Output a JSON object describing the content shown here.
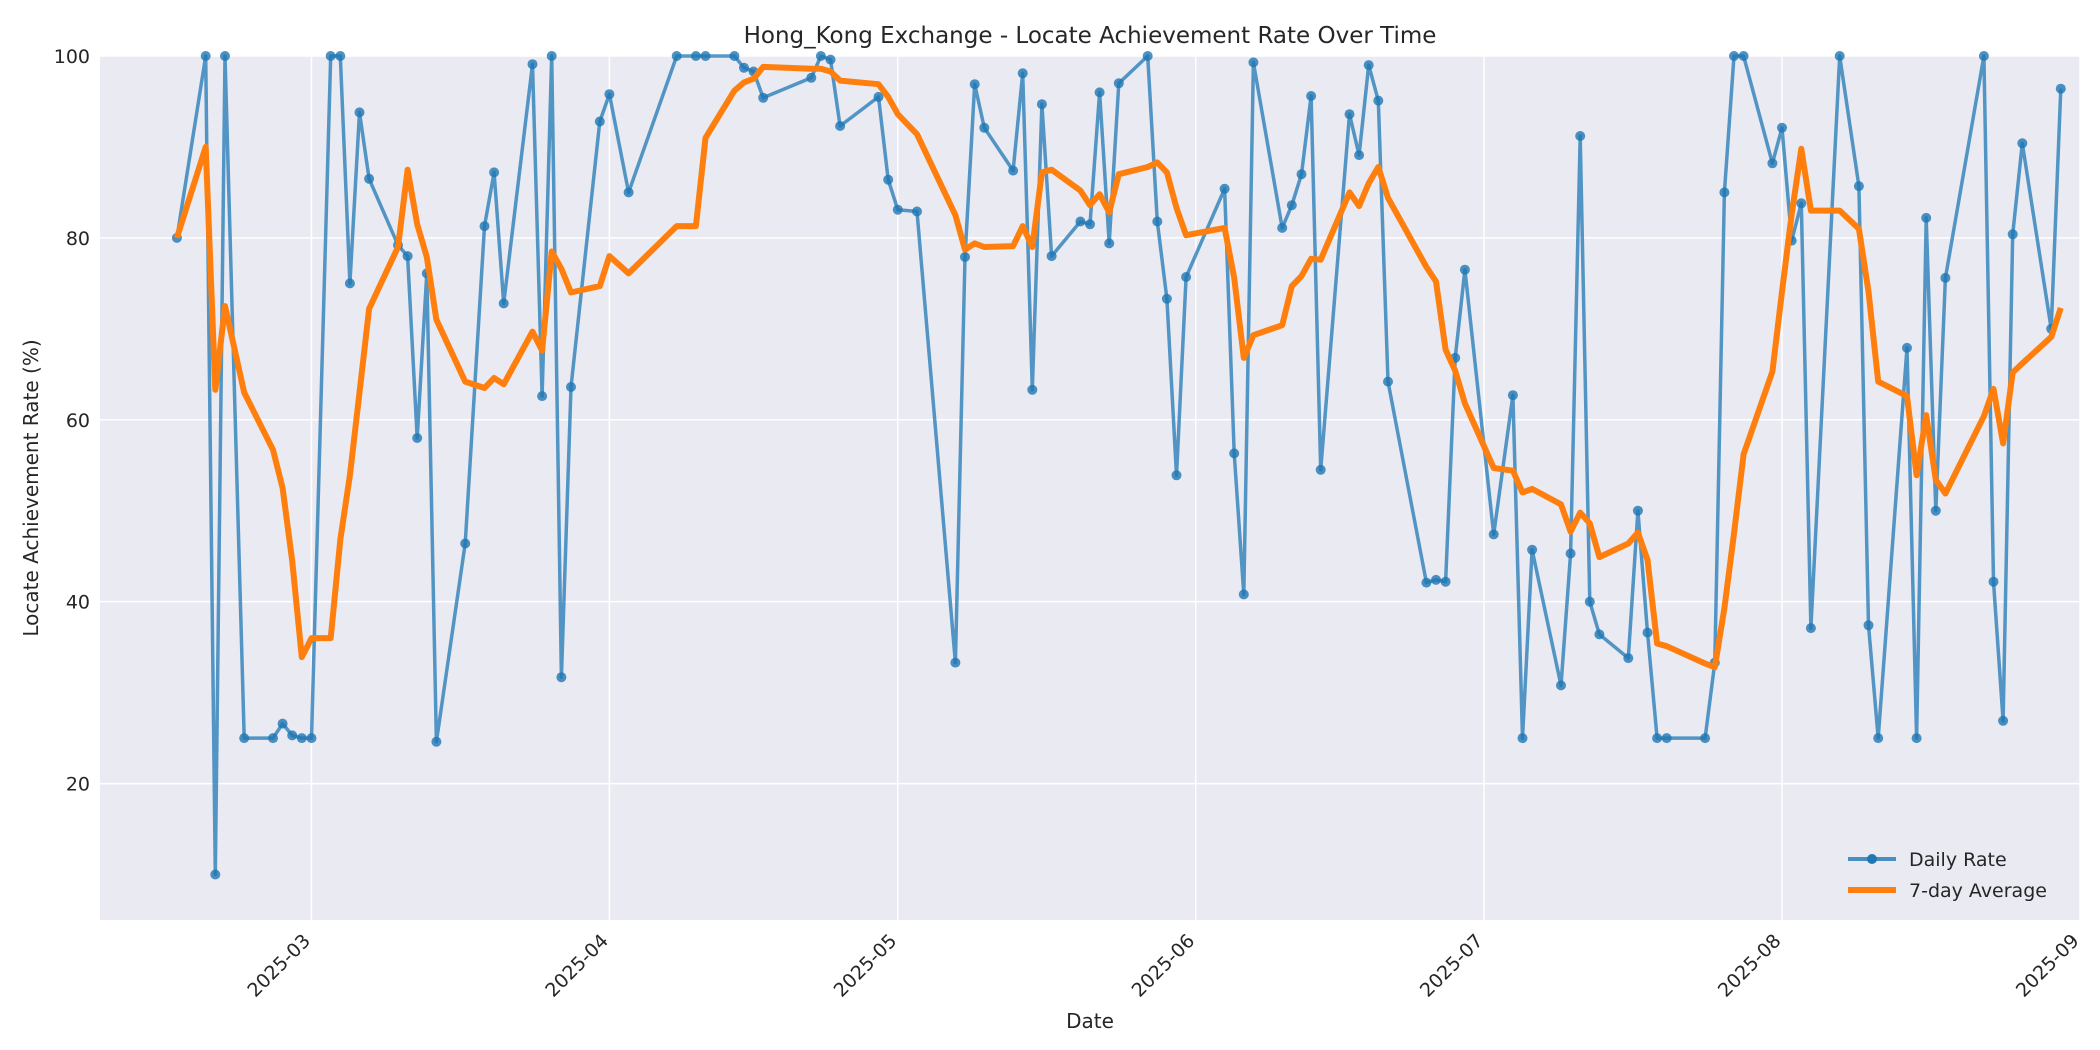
{
  "chart_data": {
    "type": "line",
    "title": "Hong_Kong Exchange - Locate Achievement Rate Over Time",
    "xlabel": "Date",
    "ylabel": "Locate Achievement Rate (%)",
    "xlim": [
      "2025-02-07",
      "2025-09-01"
    ],
    "ylim": [
      5,
      100
    ],
    "x_ticks": [
      "2025-03",
      "2025-04",
      "2025-05",
      "2025-06",
      "2025-07",
      "2025-08",
      "2025-09"
    ],
    "y_ticks": [
      20,
      40,
      60,
      80,
      100
    ],
    "grid": true,
    "legend_position": "bottom-right",
    "colors": {
      "daily": "#1f77b4",
      "avg": "#ff7f0e",
      "plot_bg": "#eaeaf2",
      "grid": "#ffffff"
    },
    "series": [
      {
        "name": "Daily Rate",
        "points": [
          [
            "2025-02-15",
            80
          ],
          [
            "2025-02-18",
            100
          ],
          [
            "2025-02-19",
            10
          ],
          [
            "2025-02-20",
            100
          ],
          [
            "2025-02-22",
            25
          ],
          [
            "2025-02-25",
            25
          ],
          [
            "2025-02-26",
            26.6
          ],
          [
            "2025-02-27",
            25.3
          ],
          [
            "2025-02-28",
            25
          ],
          [
            "2025-03-01",
            25
          ],
          [
            "2025-03-03",
            100
          ],
          [
            "2025-03-04",
            100
          ],
          [
            "2025-03-05",
            75
          ],
          [
            "2025-03-06",
            93.8
          ],
          [
            "2025-03-07",
            86.5
          ],
          [
            "2025-03-10",
            79.2
          ],
          [
            "2025-03-11",
            78
          ],
          [
            "2025-03-12",
            58
          ],
          [
            "2025-03-13",
            76.1
          ],
          [
            "2025-03-14",
            24.6
          ],
          [
            "2025-03-17",
            46.4
          ],
          [
            "2025-03-19",
            81.3
          ],
          [
            "2025-03-20",
            87.2
          ],
          [
            "2025-03-21",
            72.8
          ],
          [
            "2025-03-24",
            99.1
          ],
          [
            "2025-03-25",
            62.6
          ],
          [
            "2025-03-26",
            100
          ],
          [
            "2025-03-27",
            31.7
          ],
          [
            "2025-03-28",
            63.6
          ],
          [
            "2025-03-31",
            92.8
          ],
          [
            "2025-04-01",
            95.8
          ],
          [
            "2025-04-03",
            85
          ],
          [
            "2025-04-08",
            100
          ],
          [
            "2025-04-10",
            100
          ],
          [
            "2025-04-11",
            100
          ],
          [
            "2025-04-14",
            100
          ],
          [
            "2025-04-15",
            98.7
          ],
          [
            "2025-04-16",
            98.3
          ],
          [
            "2025-04-17",
            95.4
          ],
          [
            "2025-04-22",
            97.6
          ],
          [
            "2025-04-23",
            100
          ],
          [
            "2025-04-24",
            99.6
          ],
          [
            "2025-04-25",
            92.3
          ],
          [
            "2025-04-29",
            95.5
          ],
          [
            "2025-04-30",
            86.4
          ],
          [
            "2025-05-01",
            83.1
          ],
          [
            "2025-05-03",
            82.9
          ],
          [
            "2025-05-07",
            33.3
          ],
          [
            "2025-05-08",
            77.9
          ],
          [
            "2025-05-09",
            96.9
          ],
          [
            "2025-05-10",
            92.1
          ],
          [
            "2025-05-13",
            87.4
          ],
          [
            "2025-05-14",
            98.1
          ],
          [
            "2025-05-15",
            63.3
          ],
          [
            "2025-05-16",
            94.7
          ],
          [
            "2025-05-17",
            78
          ],
          [
            "2025-05-20",
            81.8
          ],
          [
            "2025-05-21",
            81.5
          ],
          [
            "2025-05-22",
            96
          ],
          [
            "2025-05-23",
            79.4
          ],
          [
            "2025-05-24",
            97
          ],
          [
            "2025-05-27",
            100
          ],
          [
            "2025-05-28",
            81.8
          ],
          [
            "2025-05-29",
            73.3
          ],
          [
            "2025-05-30",
            53.9
          ],
          [
            "2025-05-31",
            75.7
          ],
          [
            "2025-06-04",
            85.4
          ],
          [
            "2025-06-05",
            56.3
          ],
          [
            "2025-06-06",
            40.8
          ],
          [
            "2025-06-07",
            99.3
          ],
          [
            "2025-06-10",
            81.1
          ],
          [
            "2025-06-11",
            83.6
          ],
          [
            "2025-06-12",
            87
          ],
          [
            "2025-06-13",
            95.6
          ],
          [
            "2025-06-14",
            54.5
          ],
          [
            "2025-06-17",
            93.6
          ],
          [
            "2025-06-18",
            89.1
          ],
          [
            "2025-06-19",
            99
          ],
          [
            "2025-06-20",
            95.1
          ],
          [
            "2025-06-21",
            64.2
          ],
          [
            "2025-06-25",
            42.1
          ],
          [
            "2025-06-26",
            42.4
          ],
          [
            "2025-06-27",
            42.2
          ],
          [
            "2025-06-28",
            66.8
          ],
          [
            "2025-06-29",
            76.5
          ],
          [
            "2025-07-02",
            47.4
          ],
          [
            "2025-07-04",
            62.7
          ],
          [
            "2025-07-05",
            25
          ],
          [
            "2025-07-06",
            45.7
          ],
          [
            "2025-07-09",
            30.8
          ],
          [
            "2025-07-10",
            45.3
          ],
          [
            "2025-07-11",
            91.2
          ],
          [
            "2025-07-12",
            40
          ],
          [
            "2025-07-13",
            36.4
          ],
          [
            "2025-07-16",
            33.8
          ],
          [
            "2025-07-17",
            50
          ],
          [
            "2025-07-18",
            36.6
          ],
          [
            "2025-07-19",
            25
          ],
          [
            "2025-07-20",
            25
          ],
          [
            "2025-07-24",
            25
          ],
          [
            "2025-07-25",
            33.3
          ],
          [
            "2025-07-26",
            85
          ],
          [
            "2025-07-27",
            100
          ],
          [
            "2025-07-28",
            100
          ],
          [
            "2025-07-31",
            88.2
          ],
          [
            "2025-08-01",
            92.1
          ],
          [
            "2025-08-02",
            79.7
          ],
          [
            "2025-08-03",
            83.8
          ],
          [
            "2025-08-04",
            37.1
          ],
          [
            "2025-08-07",
            100
          ],
          [
            "2025-08-09",
            85.7
          ],
          [
            "2025-08-10",
            37.4
          ],
          [
            "2025-08-11",
            25
          ],
          [
            "2025-08-14",
            67.9
          ],
          [
            "2025-08-15",
            25
          ],
          [
            "2025-08-16",
            82.2
          ],
          [
            "2025-08-17",
            50
          ],
          [
            "2025-08-18",
            75.6
          ],
          [
            "2025-08-22",
            100
          ],
          [
            "2025-08-23",
            42.2
          ],
          [
            "2025-08-24",
            26.9
          ],
          [
            "2025-08-25",
            80.4
          ],
          [
            "2025-08-26",
            90.4
          ],
          [
            "2025-08-29",
            70
          ],
          [
            "2025-08-30",
            96.4
          ]
        ]
      },
      {
        "name": "7-day Average",
        "points": [
          [
            "2025-02-15",
            80
          ],
          [
            "2025-02-18",
            90
          ],
          [
            "2025-02-19",
            63.3
          ],
          [
            "2025-02-20",
            72.5
          ],
          [
            "2025-02-22",
            63
          ],
          [
            "2025-02-25",
            56.7
          ],
          [
            "2025-02-26",
            52.5
          ],
          [
            "2025-02-27",
            44.5
          ],
          [
            "2025-02-28",
            33.9
          ],
          [
            "2025-03-01",
            36
          ],
          [
            "2025-03-03",
            36
          ],
          [
            "2025-03-04",
            46.8
          ],
          [
            "2025-03-05",
            53.9
          ],
          [
            "2025-03-06",
            63
          ],
          [
            "2025-03-07",
            72.2
          ],
          [
            "2025-03-10",
            79
          ],
          [
            "2025-03-11",
            87.5
          ],
          [
            "2025-03-12",
            81.5
          ],
          [
            "2025-03-13",
            77.9
          ],
          [
            "2025-03-14",
            71
          ],
          [
            "2025-03-17",
            64.2
          ],
          [
            "2025-03-19",
            63.5
          ],
          [
            "2025-03-20",
            64.6
          ],
          [
            "2025-03-21",
            63.9
          ],
          [
            "2025-03-24",
            69.7
          ],
          [
            "2025-03-25",
            67.6
          ],
          [
            "2025-03-26",
            78.5
          ],
          [
            "2025-03-27",
            76.6
          ],
          [
            "2025-03-28",
            74
          ],
          [
            "2025-03-31",
            74.7
          ],
          [
            "2025-04-01",
            78
          ],
          [
            "2025-04-03",
            76.1
          ],
          [
            "2025-04-08",
            81.3
          ],
          [
            "2025-04-10",
            81.3
          ],
          [
            "2025-04-11",
            91
          ],
          [
            "2025-04-14",
            96.2
          ],
          [
            "2025-04-15",
            97.1
          ],
          [
            "2025-04-16",
            97.5
          ],
          [
            "2025-04-17",
            98.8
          ],
          [
            "2025-04-22",
            98.6
          ],
          [
            "2025-04-23",
            98.6
          ],
          [
            "2025-04-24",
            98.3
          ],
          [
            "2025-04-25",
            97.3
          ],
          [
            "2025-04-29",
            96.9
          ],
          [
            "2025-04-30",
            95.5
          ],
          [
            "2025-05-01",
            93.6
          ],
          [
            "2025-05-03",
            91.4
          ],
          [
            "2025-05-07",
            82.5
          ],
          [
            "2025-05-08",
            78.7
          ],
          [
            "2025-05-09",
            79.4
          ],
          [
            "2025-05-10",
            79
          ],
          [
            "2025-05-13",
            79.1
          ],
          [
            "2025-05-14",
            81.3
          ],
          [
            "2025-05-15",
            79
          ],
          [
            "2025-05-16",
            87.2
          ],
          [
            "2025-05-17",
            87.5
          ],
          [
            "2025-05-20",
            85.2
          ],
          [
            "2025-05-21",
            83.6
          ],
          [
            "2025-05-22",
            84.8
          ],
          [
            "2025-05-23",
            82.8
          ],
          [
            "2025-05-24",
            87
          ],
          [
            "2025-05-27",
            87.8
          ],
          [
            "2025-05-28",
            88.3
          ],
          [
            "2025-05-29",
            87.2
          ],
          [
            "2025-05-30",
            83.3
          ],
          [
            "2025-05-31",
            80.3
          ],
          [
            "2025-06-04",
            81.1
          ],
          [
            "2025-06-05",
            75.6
          ],
          [
            "2025-06-06",
            66.8
          ],
          [
            "2025-06-07",
            69.3
          ],
          [
            "2025-06-10",
            70.4
          ],
          [
            "2025-06-11",
            74.7
          ],
          [
            "2025-06-12",
            75.8
          ],
          [
            "2025-06-13",
            77.7
          ],
          [
            "2025-06-14",
            77.6
          ],
          [
            "2025-06-17",
            85
          ],
          [
            "2025-06-18",
            83.5
          ],
          [
            "2025-06-19",
            86
          ],
          [
            "2025-06-20",
            87.8
          ],
          [
            "2025-06-21",
            84.4
          ],
          [
            "2025-06-25",
            76.8
          ],
          [
            "2025-06-26",
            75.2
          ],
          [
            "2025-06-27",
            67.7
          ],
          [
            "2025-06-28",
            65.4
          ],
          [
            "2025-06-29",
            61.8
          ],
          [
            "2025-07-02",
            54.7
          ],
          [
            "2025-07-04",
            54.4
          ],
          [
            "2025-07-05",
            52
          ],
          [
            "2025-07-06",
            52.4
          ],
          [
            "2025-07-09",
            50.7
          ],
          [
            "2025-07-10",
            47.7
          ],
          [
            "2025-07-11",
            49.8
          ],
          [
            "2025-07-12",
            48.6
          ],
          [
            "2025-07-13",
            44.9
          ],
          [
            "2025-07-16",
            46.4
          ],
          [
            "2025-07-17",
            47.6
          ],
          [
            "2025-07-18",
            44.6
          ],
          [
            "2025-07-19",
            35.4
          ],
          [
            "2025-07-20",
            35.1
          ],
          [
            "2025-07-24",
            33.2
          ],
          [
            "2025-07-25",
            32.8
          ],
          [
            "2025-07-26",
            39.3
          ],
          [
            "2025-07-27",
            47.5
          ],
          [
            "2025-07-28",
            56.2
          ],
          [
            "2025-07-31",
            65.3
          ],
          [
            "2025-08-01",
            74.1
          ],
          [
            "2025-08-02",
            82.6
          ],
          [
            "2025-08-03",
            89.8
          ],
          [
            "2025-08-04",
            83
          ],
          [
            "2025-08-07",
            83
          ],
          [
            "2025-08-09",
            81
          ],
          [
            "2025-08-10",
            74.1
          ],
          [
            "2025-08-11",
            64.2
          ],
          [
            "2025-08-14",
            62.6
          ],
          [
            "2025-08-15",
            53.9
          ],
          [
            "2025-08-16",
            60.5
          ],
          [
            "2025-08-17",
            53.4
          ],
          [
            "2025-08-18",
            51.9
          ],
          [
            "2025-08-22",
            60.4
          ],
          [
            "2025-08-23",
            63.4
          ],
          [
            "2025-08-24",
            57.4
          ],
          [
            "2025-08-25",
            65.2
          ],
          [
            "2025-08-26",
            66.2
          ],
          [
            "2025-08-29",
            69.1
          ],
          [
            "2025-08-30",
            72.3
          ]
        ]
      }
    ]
  }
}
